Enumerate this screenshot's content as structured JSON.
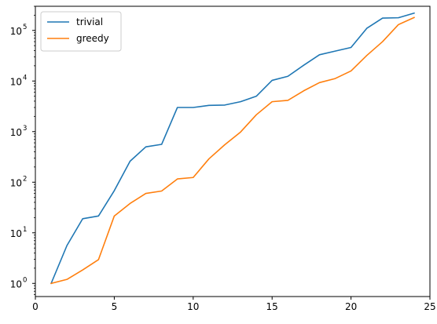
{
  "chart_data": {
    "type": "line",
    "title": "",
    "xlabel": "",
    "ylabel": "",
    "xlim": [
      0,
      25
    ],
    "ylim": [
      0.55,
      300000
    ],
    "yscale": "log",
    "grid": false,
    "legend_placement": "top-left",
    "x_ticks": [
      {
        "value": 0,
        "label": "0"
      },
      {
        "value": 5,
        "label": "5"
      },
      {
        "value": 10,
        "label": "10"
      },
      {
        "value": 15,
        "label": "15"
      },
      {
        "value": 20,
        "label": "20"
      },
      {
        "value": 25,
        "label": "25"
      }
    ],
    "y_ticks": [
      {
        "value": 1,
        "base": "10",
        "exp": "0"
      },
      {
        "value": 10,
        "base": "10",
        "exp": "1"
      },
      {
        "value": 100,
        "base": "10",
        "exp": "2"
      },
      {
        "value": 1000,
        "base": "10",
        "exp": "3"
      },
      {
        "value": 10000,
        "base": "10",
        "exp": "4"
      },
      {
        "value": 100000,
        "base": "10",
        "exp": "5"
      }
    ],
    "x": [
      1,
      2,
      3,
      4,
      5,
      6,
      7,
      8,
      9,
      10,
      11,
      12,
      13,
      14,
      15,
      16,
      17,
      18,
      19,
      20,
      21,
      22,
      23,
      24
    ],
    "series": [
      {
        "name": "trivial",
        "color": "#1f77b4",
        "values": [
          1,
          5.6,
          19,
          21.5,
          68,
          260,
          500,
          560,
          3000,
          3000,
          3300,
          3350,
          3900,
          5000,
          10300,
          12400,
          20500,
          33000,
          39000,
          46000,
          110000,
          175000,
          178000,
          220000
        ]
      },
      {
        "name": "greedy",
        "color": "#ff7f0e",
        "values": [
          1,
          1.2,
          1.85,
          2.95,
          21.5,
          38,
          60,
          67,
          116,
          124,
          290,
          550,
          980,
          2150,
          3900,
          4150,
          6400,
          9300,
          11200,
          15800,
          32000,
          60000,
          130000,
          180000
        ]
      }
    ]
  }
}
